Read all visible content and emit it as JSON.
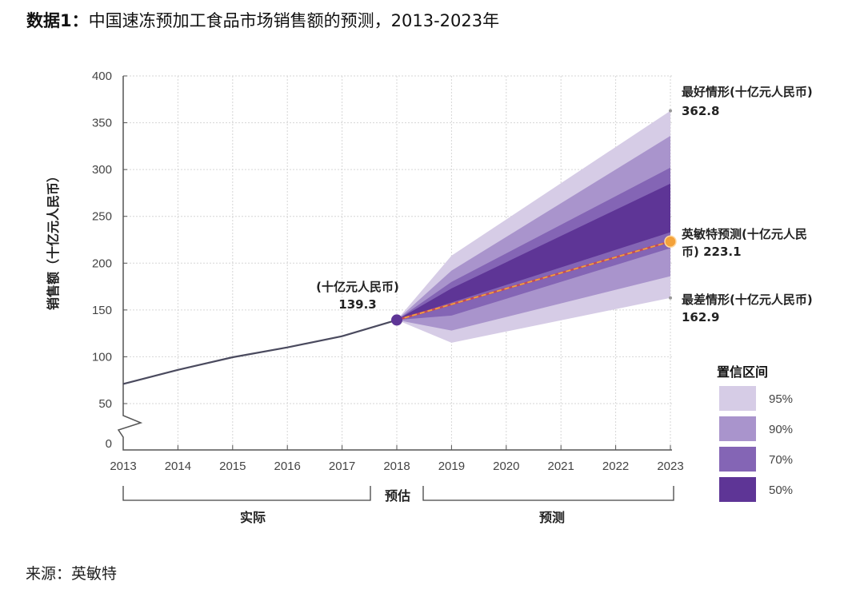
{
  "header": {
    "title_prefix": "数据1",
    "title_sep": "：",
    "title_text": "中国速冻预加工食品市场销售额的预测，2013-2023年"
  },
  "source": "来源：英敏特",
  "chart_data": {
    "type": "area",
    "title": "中国速冻预加工食品市场销售额的预测，2013-2023年",
    "ylabel": "销售额（十亿元人民币）",
    "xlabel": "",
    "ylim": [
      0,
      400
    ],
    "yticks": [
      "0",
      "50",
      "100",
      "150",
      "200",
      "250",
      "300",
      "350",
      "400"
    ],
    "ytick_values": [
      0,
      50,
      100,
      150,
      200,
      250,
      300,
      350,
      400
    ],
    "axis_break": true,
    "grid": true,
    "categories": [
      "2013",
      "2014",
      "2015",
      "2016",
      "2017",
      "2018",
      "2019",
      "2020",
      "2021",
      "2022",
      "2023"
    ],
    "actual": {
      "name": "实际",
      "x": [
        2013,
        2014,
        2015,
        2016,
        2017,
        2018
      ],
      "values": [
        71,
        86,
        99.5,
        110,
        122,
        139.3
      ],
      "color": "#4a4a5e"
    },
    "forecast": {
      "name": "英敏特预测",
      "x": [
        2018,
        2023
      ],
      "values": [
        139.3,
        223.1
      ],
      "color": "#f0a040"
    },
    "bands": [
      {
        "name": "95%",
        "color": "#d6cce6",
        "x": [
          2018,
          2019,
          2023
        ],
        "upper": [
          139.3,
          208,
          362.8
        ],
        "lower": [
          139.3,
          115,
          162.9
        ]
      },
      {
        "name": "90%",
        "color": "#a994cc",
        "x": [
          2018,
          2019,
          2023
        ],
        "upper": [
          139.3,
          192,
          336
        ],
        "lower": [
          139.3,
          128,
          186
        ]
      },
      {
        "name": "70%",
        "color": "#8465b5",
        "x": [
          2018,
          2019,
          2023
        ],
        "upper": [
          139.3,
          180,
          302
        ],
        "lower": [
          139.3,
          144,
          216
        ]
      },
      {
        "name": "50%",
        "color": "#5e3596",
        "x": [
          2018,
          2019,
          2023
        ],
        "upper": [
          139.3,
          173,
          285
        ],
        "lower": [
          139.3,
          158,
          233
        ]
      }
    ],
    "annotations": {
      "estimate_label": "(十亿元人民币)",
      "estimate_value": "139.3",
      "best_label": "最好情形(十亿元人民币)",
      "best_value": "362.8",
      "forecast_label_line1": "英敏特预测(十亿元人民",
      "forecast_label_line2": "币) 223.1",
      "worst_label": "最差情形(十亿元人民币)",
      "worst_value": "162.9"
    },
    "periods": {
      "actual": "实际",
      "estimate": "预估",
      "forecast": "预测"
    },
    "legend": {
      "title": "置信区间",
      "placement": "bottom-right",
      "items": [
        "95%",
        "90%",
        "70%",
        "50%"
      ],
      "colors": [
        "#d6cce6",
        "#a994cc",
        "#8465b5",
        "#5e3596"
      ]
    },
    "colors": {
      "estimate_point": "#5e3596",
      "estimate_text": "#c0282d",
      "forecast_point": "#f4a23a"
    }
  }
}
